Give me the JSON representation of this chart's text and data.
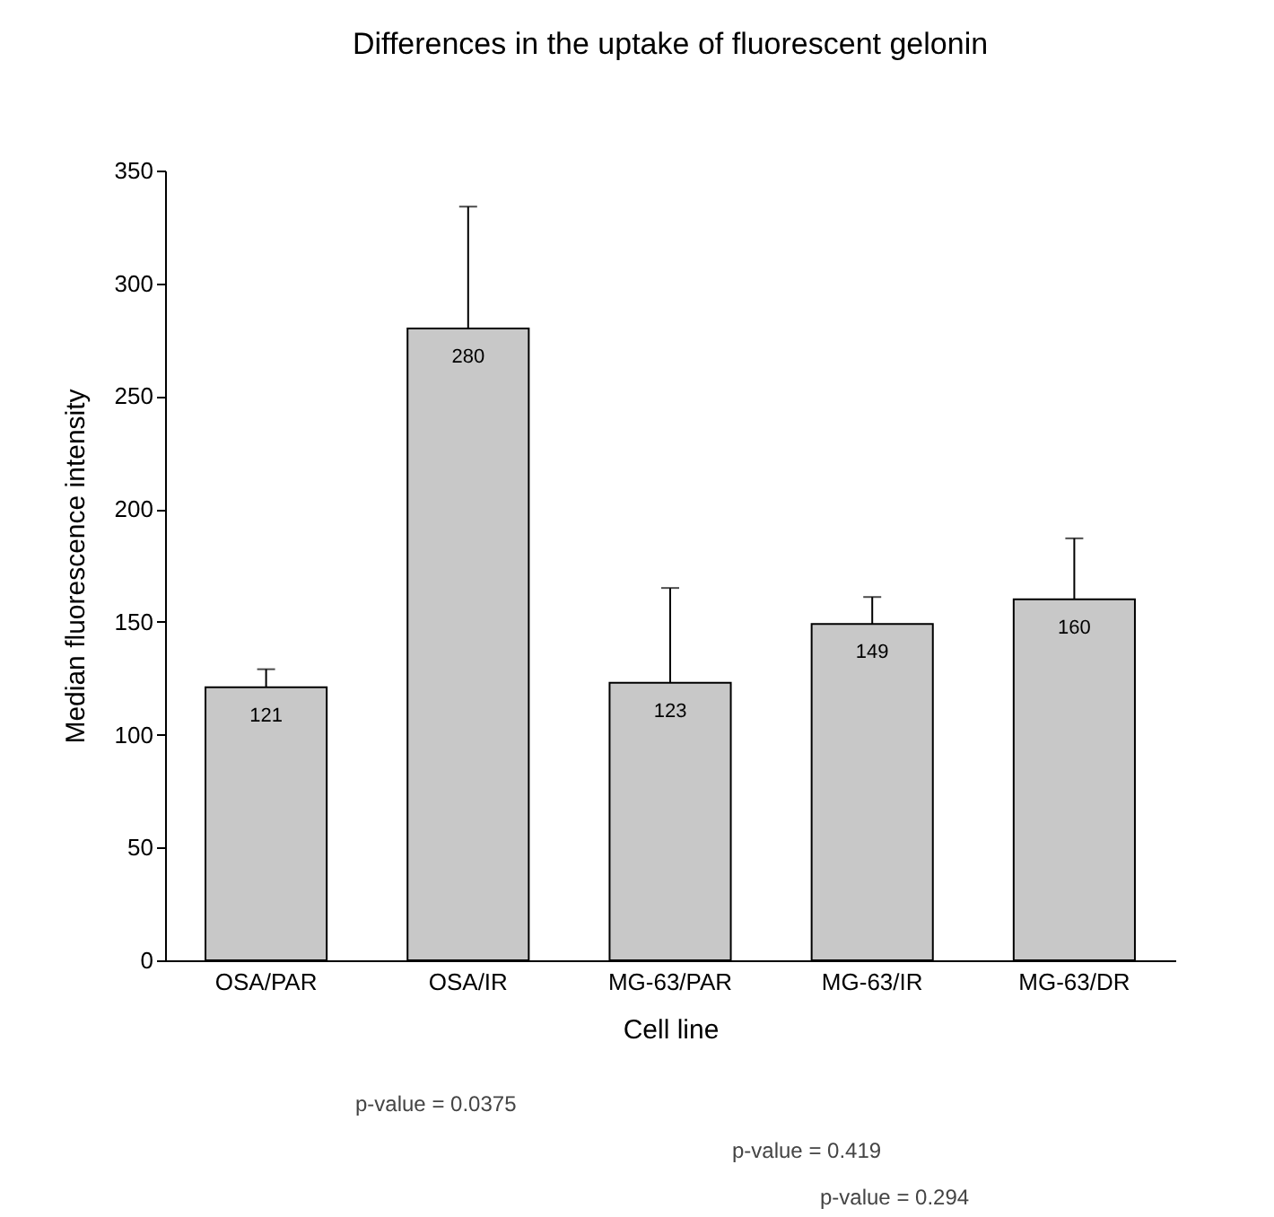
{
  "chart_data": {
    "type": "bar",
    "title": "Differences in the uptake of fluorescent gelonin",
    "xlabel": "Cell line",
    "ylabel": "Median fluorescence intensity",
    "categories": [
      "OSA/PAR",
      "OSA/IR",
      "MG-63/PAR",
      "MG-63/IR",
      "MG-63/DR"
    ],
    "values": [
      121,
      280,
      123,
      149,
      160
    ],
    "errors": [
      [
        121,
        129
      ],
      [
        280,
        334
      ],
      [
        123,
        165
      ],
      [
        149,
        161
      ],
      [
        160,
        187
      ]
    ],
    "color": "#c8c8c8",
    "data_labels": true,
    "grid": false,
    "ylim": [
      0,
      350
    ],
    "yticks": [
      0,
      50,
      100,
      150,
      200,
      250,
      300,
      350
    ],
    "annotations": [
      "p-value = 0.0375",
      "p-value = 0.419",
      "p-value = 0.294"
    ]
  }
}
